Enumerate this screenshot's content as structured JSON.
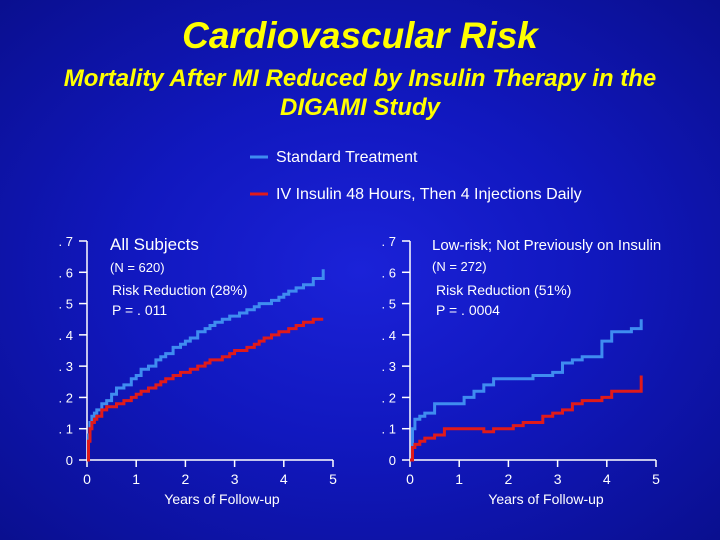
{
  "header": {
    "title": "Cardiovascular Risk",
    "subtitle": "Mortality After MI Reduced by Insulin Therapy in the DIGAMI Study"
  },
  "legend": [
    {
      "label": "Standard Treatment",
      "color": "#3f8cf0"
    },
    {
      "label": "IV Insulin 48 Hours, Then 4 Injections Daily",
      "color": "#e01a1a"
    }
  ],
  "colors": {
    "text": "#ffffff",
    "title": "#ffff00",
    "axis": "#ffffff"
  },
  "chart_data": [
    {
      "type": "line",
      "title": "All Subjects",
      "n_label": "(N = 620)",
      "reduction_label": "Risk Reduction (28%)",
      "p_label": "P = . 011",
      "xlabel": "Years of Follow-up",
      "xlim": [
        0,
        5
      ],
      "ylim": [
        0,
        0.7
      ],
      "x_ticks": [
        0,
        1,
        2,
        3,
        4,
        5
      ],
      "x_tick_labels": [
        "0",
        "1",
        "2",
        "3",
        "4",
        "5"
      ],
      "y_ticks": [
        0,
        0.1,
        0.2,
        0.3,
        0.4,
        0.5,
        0.6,
        0.7
      ],
      "y_tick_labels": [
        "0",
        ". 1",
        ". 2",
        ". 3",
        ". 4",
        ". 5",
        ". 6",
        ". 7"
      ],
      "series": [
        {
          "name": "Standard Treatment",
          "color": "#3f8cf0",
          "x": [
            0,
            0.03,
            0.06,
            0.1,
            0.15,
            0.2,
            0.3,
            0.4,
            0.5,
            0.6,
            0.75,
            0.9,
            1.0,
            1.1,
            1.25,
            1.4,
            1.5,
            1.6,
            1.75,
            1.9,
            2.0,
            2.1,
            2.25,
            2.4,
            2.5,
            2.6,
            2.75,
            2.9,
            3.0,
            3.1,
            3.25,
            3.4,
            3.5,
            3.6,
            3.75,
            3.9,
            4.0,
            4.1,
            4.25,
            4.4,
            4.6,
            4.8
          ],
          "y": [
            0,
            0.08,
            0.12,
            0.14,
            0.15,
            0.16,
            0.18,
            0.19,
            0.21,
            0.23,
            0.24,
            0.26,
            0.27,
            0.29,
            0.3,
            0.32,
            0.33,
            0.34,
            0.36,
            0.37,
            0.38,
            0.39,
            0.41,
            0.42,
            0.43,
            0.44,
            0.45,
            0.46,
            0.46,
            0.47,
            0.48,
            0.49,
            0.5,
            0.5,
            0.51,
            0.52,
            0.53,
            0.54,
            0.55,
            0.56,
            0.58,
            0.61
          ]
        },
        {
          "name": "IV Insulin 48 Hours, Then 4 Injections Daily",
          "color": "#e01a1a",
          "x": [
            0,
            0.03,
            0.06,
            0.1,
            0.15,
            0.2,
            0.3,
            0.4,
            0.5,
            0.6,
            0.75,
            0.9,
            1.0,
            1.1,
            1.25,
            1.4,
            1.5,
            1.6,
            1.75,
            1.9,
            2.0,
            2.1,
            2.25,
            2.4,
            2.5,
            2.6,
            2.75,
            2.9,
            3.0,
            3.1,
            3.25,
            3.4,
            3.5,
            3.6,
            3.75,
            3.9,
            4.0,
            4.1,
            4.25,
            4.4,
            4.6,
            4.8
          ],
          "y": [
            0,
            0.06,
            0.1,
            0.12,
            0.13,
            0.14,
            0.16,
            0.17,
            0.17,
            0.18,
            0.19,
            0.2,
            0.21,
            0.22,
            0.23,
            0.24,
            0.25,
            0.26,
            0.27,
            0.28,
            0.28,
            0.29,
            0.3,
            0.31,
            0.32,
            0.32,
            0.33,
            0.34,
            0.35,
            0.35,
            0.36,
            0.37,
            0.38,
            0.39,
            0.4,
            0.41,
            0.41,
            0.42,
            0.43,
            0.44,
            0.45,
            0.45
          ]
        }
      ]
    },
    {
      "type": "line",
      "title": "Low-risk; Not Previously on Insulin",
      "n_label": "(N = 272)",
      "reduction_label": "Risk Reduction (51%)",
      "p_label": "P = . 0004",
      "xlabel": "Years of Follow-up",
      "xlim": [
        0,
        5
      ],
      "ylim": [
        0,
        0.7
      ],
      "x_ticks": [
        0,
        1,
        2,
        3,
        4,
        5
      ],
      "x_tick_labels": [
        "0",
        "1",
        "2",
        "3",
        "4",
        "5"
      ],
      "y_ticks": [
        0,
        0.1,
        0.2,
        0.3,
        0.4,
        0.5,
        0.6,
        0.7
      ],
      "y_tick_labels": [
        "0",
        ". 1",
        ". 2",
        ". 3",
        ". 4",
        ". 5",
        ". 6",
        ". 7"
      ],
      "series": [
        {
          "name": "Standard Treatment",
          "color": "#3f8cf0",
          "x": [
            0,
            0.05,
            0.1,
            0.2,
            0.3,
            0.5,
            0.7,
            0.9,
            1.1,
            1.3,
            1.5,
            1.7,
            1.9,
            2.1,
            2.3,
            2.5,
            2.7,
            2.9,
            3.1,
            3.3,
            3.5,
            3.7,
            3.9,
            4.1,
            4.3,
            4.5,
            4.7
          ],
          "y": [
            0,
            0.1,
            0.13,
            0.14,
            0.15,
            0.18,
            0.18,
            0.18,
            0.2,
            0.22,
            0.24,
            0.26,
            0.26,
            0.26,
            0.26,
            0.27,
            0.27,
            0.28,
            0.31,
            0.32,
            0.33,
            0.33,
            0.38,
            0.41,
            0.41,
            0.42,
            0.45
          ]
        },
        {
          "name": "IV Insulin 48 Hours, Then 4 Injections Daily",
          "color": "#e01a1a",
          "x": [
            0,
            0.05,
            0.1,
            0.2,
            0.3,
            0.5,
            0.7,
            0.9,
            1.1,
            1.3,
            1.5,
            1.7,
            1.9,
            2.1,
            2.3,
            2.5,
            2.7,
            2.9,
            3.1,
            3.3,
            3.5,
            3.7,
            3.9,
            4.1,
            4.3,
            4.5,
            4.7
          ],
          "y": [
            0,
            0.04,
            0.05,
            0.06,
            0.07,
            0.08,
            0.1,
            0.1,
            0.1,
            0.1,
            0.09,
            0.1,
            0.1,
            0.11,
            0.12,
            0.12,
            0.14,
            0.15,
            0.16,
            0.18,
            0.19,
            0.19,
            0.2,
            0.22,
            0.22,
            0.22,
            0.27
          ]
        }
      ]
    }
  ]
}
